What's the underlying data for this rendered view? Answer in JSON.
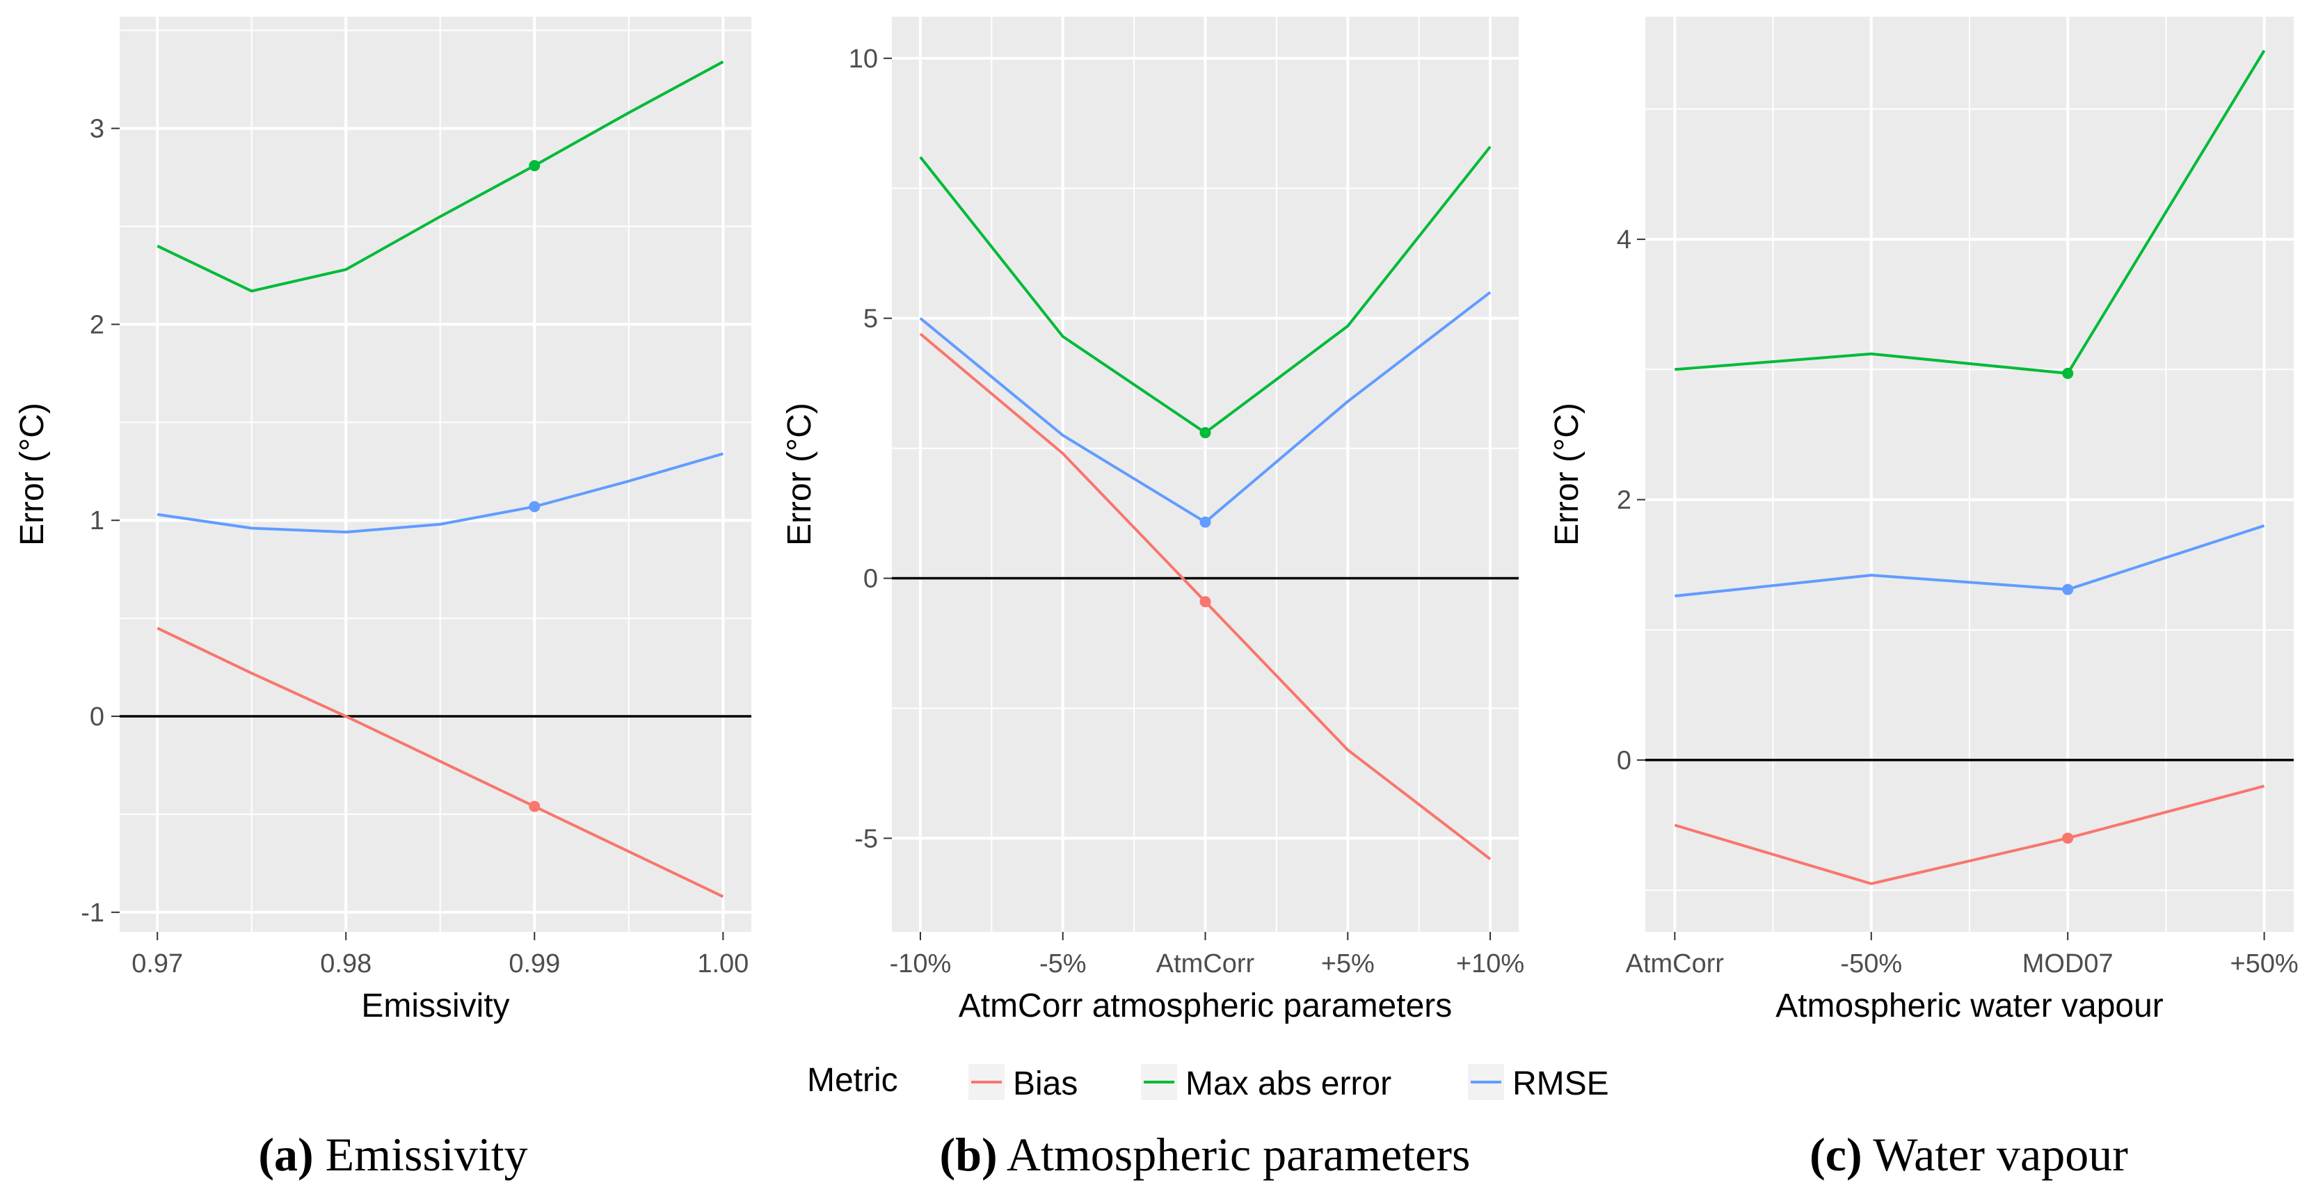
{
  "colors": {
    "panel_bg": "#ebebeb",
    "grid": "#ffffff",
    "zero_line": "#000000",
    "bias": "#f8766d",
    "max_abs_error": "#00ba38",
    "rmse": "#619cff",
    "tick_text": "#4d4d4d",
    "axis_title": "#000000"
  },
  "legend": {
    "title": "Metric",
    "items": [
      {
        "key": "bias",
        "label": "Bias"
      },
      {
        "key": "max_abs_error",
        "label": "Max abs error"
      },
      {
        "key": "rmse",
        "label": "RMSE"
      }
    ]
  },
  "chart_data": [
    {
      "type": "line",
      "id": "a",
      "caption_prefix": "(a)",
      "caption_text": " Emissivity",
      "xlabel": "Emissivity",
      "ylabel": "Error (°C)",
      "x_scale": "numeric",
      "x": [
        0.97,
        0.975,
        0.98,
        0.985,
        0.99,
        0.995,
        1.0
      ],
      "xlim": [
        0.968,
        1.0015
      ],
      "xticks": [
        0.97,
        0.98,
        0.99,
        1.0
      ],
      "xtick_labels": [
        "0.97",
        "0.98",
        "0.99",
        "1.00"
      ],
      "ylim": [
        -1.1,
        3.57
      ],
      "yticks": [
        -1,
        0,
        1,
        2,
        3
      ],
      "ytick_labels": [
        "-1",
        "0",
        "1",
        "2",
        "3"
      ],
      "highlight_index": 4,
      "series": [
        {
          "key": "max_abs_error",
          "name": "Max abs error",
          "values": [
            2.4,
            2.17,
            2.28,
            2.55,
            2.81,
            3.08,
            3.34
          ]
        },
        {
          "key": "rmse",
          "name": "RMSE",
          "values": [
            1.03,
            0.96,
            0.94,
            0.98,
            1.07,
            1.2,
            1.34
          ]
        },
        {
          "key": "bias",
          "name": "Bias",
          "values": [
            0.45,
            0.22,
            0.0,
            -0.23,
            -0.46,
            -0.69,
            -0.92
          ]
        }
      ]
    },
    {
      "type": "line",
      "id": "b",
      "caption_prefix": "(b)",
      "caption_text": " Atmospheric parameters",
      "xlabel": "AtmCorr atmospheric parameters",
      "ylabel": "Error (°C)",
      "x_scale": "categorical",
      "categories": [
        "-10%",
        "-5%",
        "AtmCorr",
        "+5%",
        "+10%"
      ],
      "xlim": [
        -0.2,
        4.2
      ],
      "ylim": [
        -6.8,
        10.8
      ],
      "yticks": [
        -5,
        0,
        5,
        10
      ],
      "ytick_labels": [
        "-5",
        "0",
        "5",
        "10"
      ],
      "highlight_index": 2,
      "series": [
        {
          "key": "max_abs_error",
          "name": "Max abs error",
          "values": [
            8.1,
            4.65,
            2.8,
            4.85,
            8.3
          ]
        },
        {
          "key": "rmse",
          "name": "RMSE",
          "values": [
            5.0,
            2.75,
            1.08,
            3.4,
            5.5
          ]
        },
        {
          "key": "bias",
          "name": "Bias",
          "values": [
            4.7,
            2.4,
            -0.45,
            -3.3,
            -5.4
          ]
        }
      ]
    },
    {
      "type": "line",
      "id": "c",
      "caption_prefix": "(c)",
      "caption_text": " Water vapour",
      "xlabel": "Atmospheric water vapour",
      "ylabel": "Error (°C)",
      "x_scale": "categorical",
      "categories": [
        "AtmCorr",
        "-50%",
        "MOD07",
        "+50%"
      ],
      "xlim": [
        -0.15,
        3.15
      ],
      "ylim": [
        -1.32,
        5.71
      ],
      "yticks": [
        0,
        2,
        4
      ],
      "ytick_labels": [
        "0",
        "2",
        "4"
      ],
      "highlight_index": 2,
      "series": [
        {
          "key": "max_abs_error",
          "name": "Max abs error",
          "values": [
            3.0,
            3.12,
            2.97,
            5.45
          ]
        },
        {
          "key": "rmse",
          "name": "RMSE",
          "values": [
            1.26,
            1.42,
            1.31,
            1.8
          ]
        },
        {
          "key": "bias",
          "name": "Bias",
          "values": [
            -0.5,
            -0.95,
            -0.6,
            -0.2
          ]
        }
      ]
    }
  ]
}
